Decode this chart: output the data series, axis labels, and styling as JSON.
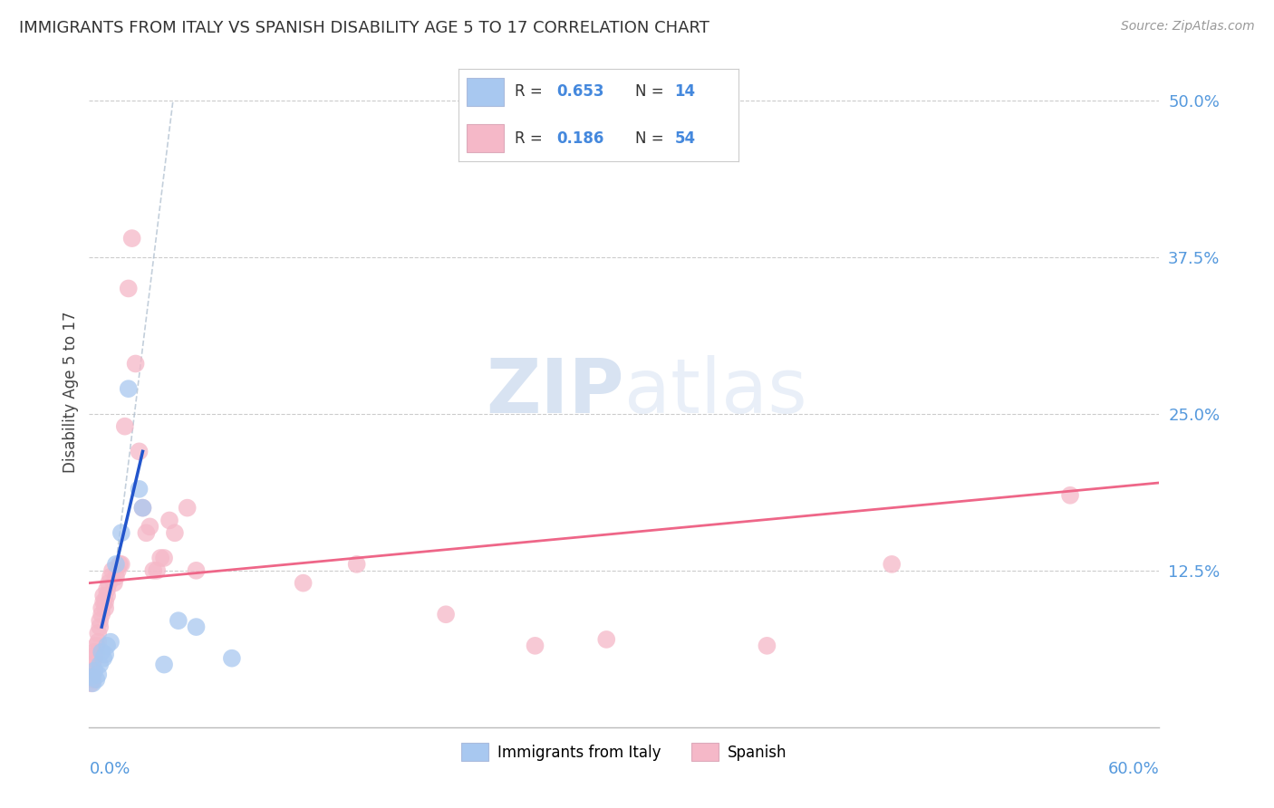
{
  "title": "IMMIGRANTS FROM ITALY VS SPANISH DISABILITY AGE 5 TO 17 CORRELATION CHART",
  "source": "Source: ZipAtlas.com",
  "ylabel": "Disability Age 5 to 17",
  "xlim": [
    0.0,
    0.6
  ],
  "ylim": [
    0.0,
    0.535
  ],
  "italy_color": "#a8c8f0",
  "spain_color": "#f5b8c8",
  "italy_line_color": "#2255cc",
  "spain_line_color": "#ee6688",
  "dashed_line_color": "#aabbcc",
  "italy_scatter": [
    [
      0.001,
      0.04
    ],
    [
      0.002,
      0.035
    ],
    [
      0.003,
      0.045
    ],
    [
      0.004,
      0.038
    ],
    [
      0.005,
      0.042
    ],
    [
      0.006,
      0.05
    ],
    [
      0.007,
      0.06
    ],
    [
      0.008,
      0.055
    ],
    [
      0.009,
      0.058
    ],
    [
      0.01,
      0.065
    ],
    [
      0.012,
      0.068
    ],
    [
      0.015,
      0.13
    ],
    [
      0.018,
      0.155
    ],
    [
      0.022,
      0.27
    ],
    [
      0.028,
      0.19
    ],
    [
      0.03,
      0.175
    ],
    [
      0.042,
      0.05
    ],
    [
      0.05,
      0.085
    ],
    [
      0.06,
      0.08
    ],
    [
      0.08,
      0.055
    ]
  ],
  "spain_scatter": [
    [
      0.001,
      0.04
    ],
    [
      0.001,
      0.035
    ],
    [
      0.001,
      0.045
    ],
    [
      0.002,
      0.038
    ],
    [
      0.002,
      0.042
    ],
    [
      0.002,
      0.05
    ],
    [
      0.003,
      0.06
    ],
    [
      0.003,
      0.055
    ],
    [
      0.004,
      0.058
    ],
    [
      0.004,
      0.065
    ],
    [
      0.005,
      0.068
    ],
    [
      0.005,
      0.075
    ],
    [
      0.006,
      0.08
    ],
    [
      0.006,
      0.085
    ],
    [
      0.007,
      0.09
    ],
    [
      0.007,
      0.095
    ],
    [
      0.008,
      0.1
    ],
    [
      0.008,
      0.105
    ],
    [
      0.009,
      0.095
    ],
    [
      0.009,
      0.1
    ],
    [
      0.01,
      0.11
    ],
    [
      0.01,
      0.105
    ],
    [
      0.011,
      0.115
    ],
    [
      0.012,
      0.12
    ],
    [
      0.013,
      0.125
    ],
    [
      0.014,
      0.115
    ],
    [
      0.015,
      0.12
    ],
    [
      0.016,
      0.125
    ],
    [
      0.017,
      0.13
    ],
    [
      0.018,
      0.13
    ],
    [
      0.02,
      0.24
    ],
    [
      0.022,
      0.35
    ],
    [
      0.024,
      0.39
    ],
    [
      0.026,
      0.29
    ],
    [
      0.028,
      0.22
    ],
    [
      0.03,
      0.175
    ],
    [
      0.032,
      0.155
    ],
    [
      0.034,
      0.16
    ],
    [
      0.036,
      0.125
    ],
    [
      0.038,
      0.125
    ],
    [
      0.04,
      0.135
    ],
    [
      0.042,
      0.135
    ],
    [
      0.045,
      0.165
    ],
    [
      0.048,
      0.155
    ],
    [
      0.055,
      0.175
    ],
    [
      0.06,
      0.125
    ],
    [
      0.12,
      0.115
    ],
    [
      0.15,
      0.13
    ],
    [
      0.2,
      0.09
    ],
    [
      0.25,
      0.065
    ],
    [
      0.29,
      0.07
    ],
    [
      0.38,
      0.065
    ],
    [
      0.45,
      0.13
    ],
    [
      0.55,
      0.185
    ]
  ],
  "background_color": "#ffffff",
  "grid_color": "#cccccc"
}
